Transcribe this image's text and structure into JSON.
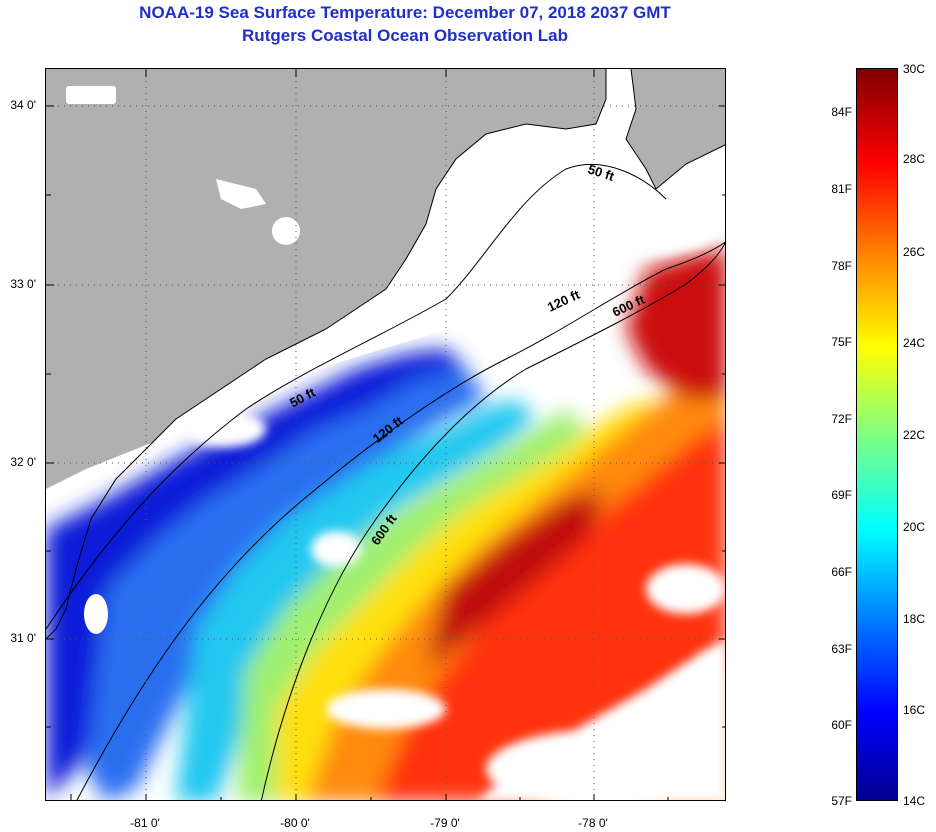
{
  "header": {
    "title_line1": "NOAA-19 Sea Surface Temperature:  December 07, 2018 2037 GMT",
    "title_line2": "Rutgers Coastal Ocean Observation Lab"
  },
  "map": {
    "lat_labels": [
      "34 0'",
      "33 0'",
      "32 0'",
      "31 0'"
    ],
    "lon_labels": [
      "-81 0'",
      "-80 0'",
      "-79 0'",
      "-78 0'"
    ],
    "contour_labels": [
      "50 ft",
      "120 ft",
      "600 ft",
      "50 ft",
      "120 ft",
      "600 ft"
    ],
    "colors": {
      "land": "#b0b0b0",
      "cloud": "#ffffff",
      "coast": "#000000"
    }
  },
  "colorbar": {
    "fahrenheit": [
      "84F",
      "81F",
      "78F",
      "75F",
      "72F",
      "69F",
      "66F",
      "63F",
      "60F",
      "57F"
    ],
    "celsius": [
      "30C",
      "28C",
      "26C",
      "24C",
      "22C",
      "20C",
      "18C",
      "16C",
      "14C"
    ]
  }
}
